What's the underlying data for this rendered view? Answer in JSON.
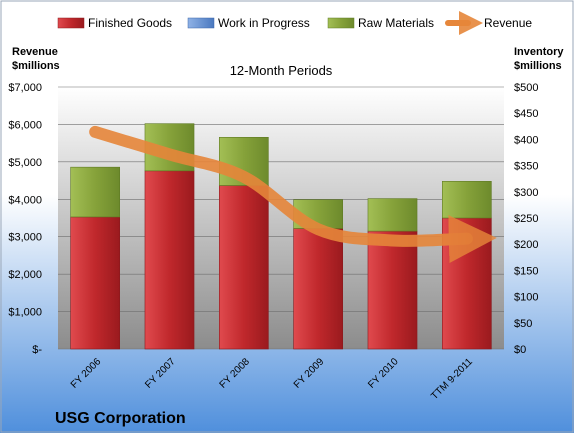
{
  "chart_data": {
    "type": "bar",
    "title": "12-Month Periods",
    "company": "USG Corporation",
    "left_axis_label": [
      "Revenue",
      "$millions"
    ],
    "right_axis_label": [
      "Inventory",
      "$millions"
    ],
    "categories": [
      "FY 2006",
      "FY 2007",
      "FY 2008",
      "FY 2009",
      "FY 2010",
      "TTM 9-2011"
    ],
    "left_axis": {
      "min": 0,
      "max": 7000,
      "step": 1000,
      "tick_labels": [
        "$-",
        "$1,000",
        "$2,000",
        "$3,000",
        "$4,000",
        "$5,000",
        "$6,000",
        "$7,000"
      ]
    },
    "right_axis": {
      "min": 0,
      "max": 500,
      "step": 50,
      "tick_labels": [
        "$0",
        "$50",
        "$100",
        "$150",
        "$200",
        "$250",
        "$300",
        "$350",
        "$400",
        "$450",
        "$500"
      ]
    },
    "stacked_series": [
      {
        "name": "Finished Goods",
        "axis": "right",
        "color": "#c0282c",
        "values": [
          252,
          340,
          312,
          230,
          225,
          250
        ]
      },
      {
        "name": "Work in Progress",
        "axis": "right",
        "color": "#5b8bd0",
        "values": [
          0,
          0,
          0,
          0,
          0,
          0
        ]
      },
      {
        "name": "Raw Materials",
        "axis": "right",
        "color": "#8aa63b",
        "values": [
          95,
          90,
          92,
          55,
          62,
          70
        ]
      }
    ],
    "line_series": {
      "name": "Revenue",
      "axis": "left",
      "color": "#e6863a",
      "values": [
        5800,
        5200,
        4600,
        3200,
        2900,
        2950
      ]
    },
    "colors": {
      "plot_bg_top": "#ffffff",
      "plot_bg_bottom": "#8c8c8c",
      "page_bg_top": "#ffffff",
      "page_bg_bottom": "#4f8fdc"
    }
  }
}
